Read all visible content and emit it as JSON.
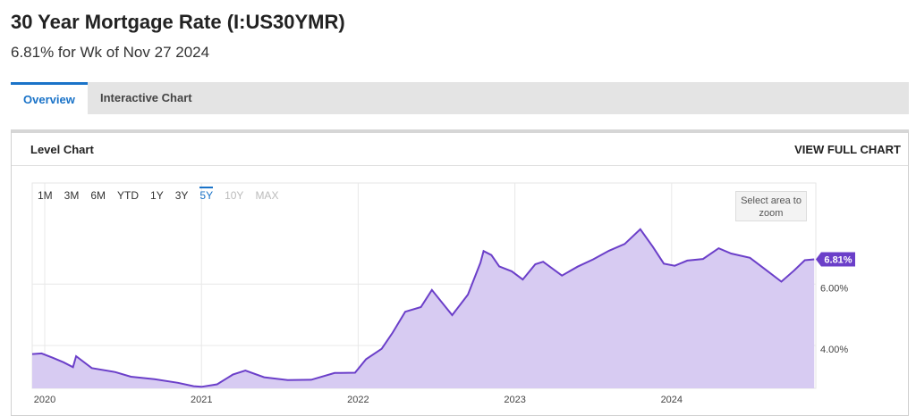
{
  "header": {
    "title": "30 Year Mortgage Rate (I:US30YMR)",
    "subtitle": "6.81% for Wk of Nov 27 2024"
  },
  "tabs": [
    "Overview",
    "Interactive Chart"
  ],
  "panel": {
    "title": "Level Chart",
    "link": "VIEW FULL CHART"
  },
  "range_buttons": [
    "1M",
    "3M",
    "6M",
    "YTD",
    "1Y",
    "3Y",
    "5Y",
    "10Y",
    "MAX"
  ],
  "zoom_hint": "Select area to zoom",
  "chart_data": {
    "type": "area",
    "x": [
      2019.92,
      2019.98,
      2020.05,
      2020.12,
      2020.18,
      2020.2,
      2020.3,
      2020.45,
      2020.55,
      2020.7,
      2020.85,
      2020.95,
      2021.0,
      2021.1,
      2021.2,
      2021.28,
      2021.4,
      2021.55,
      2021.7,
      2021.85,
      2021.98,
      2022.05,
      2022.15,
      2022.22,
      2022.3,
      2022.4,
      2022.47,
      2022.55,
      2022.6,
      2022.7,
      2022.78,
      2022.8,
      2022.85,
      2022.9,
      2022.98,
      2023.05,
      2023.13,
      2023.18,
      2023.3,
      2023.4,
      2023.5,
      2023.6,
      2023.7,
      2023.8,
      2023.88,
      2023.95,
      2024.02,
      2024.1,
      2024.2,
      2024.3,
      2024.38,
      2024.5,
      2024.6,
      2024.7,
      2024.78,
      2024.85,
      2024.91
    ],
    "values": [
      3.72,
      3.74,
      3.6,
      3.45,
      3.29,
      3.65,
      3.26,
      3.13,
      2.98,
      2.9,
      2.78,
      2.67,
      2.65,
      2.73,
      3.05,
      3.18,
      2.96,
      2.87,
      2.88,
      3.1,
      3.11,
      3.55,
      3.89,
      4.42,
      5.1,
      5.25,
      5.81,
      5.3,
      4.99,
      5.66,
      6.7,
      7.08,
      6.95,
      6.58,
      6.42,
      6.15,
      6.65,
      6.73,
      6.28,
      6.57,
      6.81,
      7.09,
      7.31,
      7.79,
      7.22,
      6.67,
      6.6,
      6.77,
      6.82,
      7.17,
      7.0,
      6.86,
      6.47,
      6.08,
      6.44,
      6.78,
      6.81
    ],
    "current_value_label": "6.81%",
    "line_color": "#6b3fc9",
    "fill_color": "#d7cbf2",
    "xlim": [
      2019.92,
      2024.92
    ],
    "xticks": [
      2020,
      2021,
      2022,
      2023,
      2024
    ],
    "ylim": [
      2.6,
      9.3
    ],
    "yticks": [
      {
        "value": 4,
        "label": "4.00%"
      },
      {
        "value": 6,
        "label": "6.00%"
      }
    ],
    "grid": true
  }
}
